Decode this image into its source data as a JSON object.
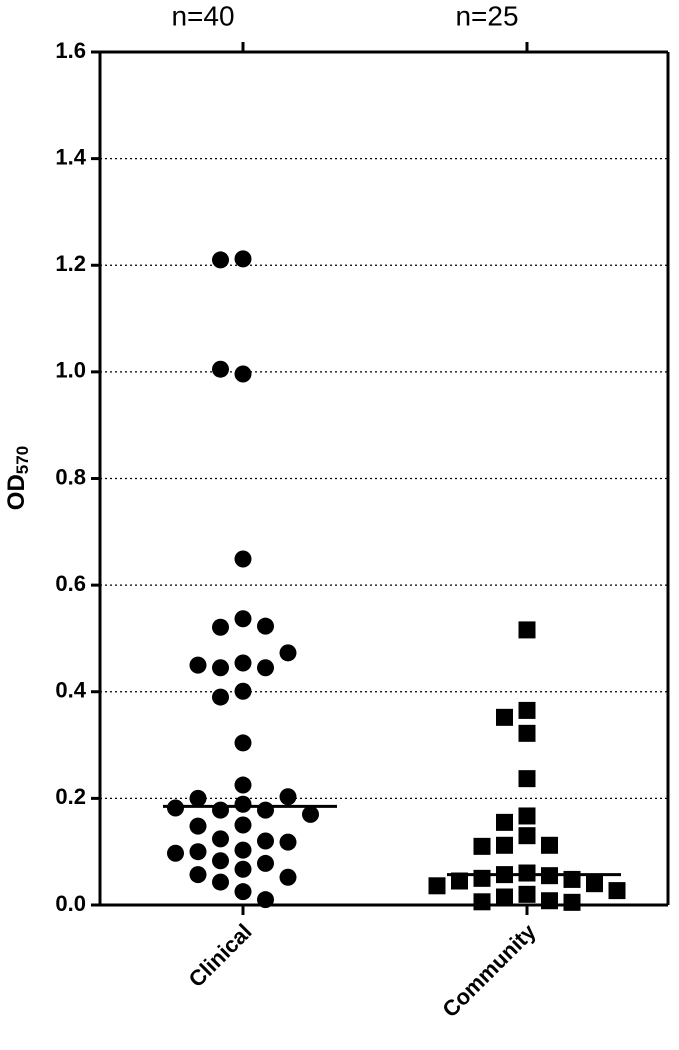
{
  "chart_data": {
    "type": "strip",
    "y_label": "OD",
    "y_label_sub": "570",
    "categories": [
      "Clinical",
      "Community"
    ],
    "annotations": [
      "n=40",
      "n=25"
    ],
    "ylim": [
      0,
      1.6
    ],
    "yticks": [
      {
        "value": 0,
        "label": "0.0"
      },
      0.2,
      0.4,
      0.6,
      0.8,
      {
        "value": 1,
        "label": "1.0"
      },
      1.2,
      1.4,
      1.6
    ],
    "grid": true,
    "series": [
      {
        "color": "#000000",
        "marker": "circle",
        "median": 0.185,
        "values": [
          1.212,
          1.21,
          0.996,
          1.005,
          0.649,
          0.537,
          0.521,
          0.523,
          0.454,
          0.445,
          0.445,
          0.45,
          0.473,
          0.401,
          0.39,
          0.304,
          0.225,
          0.189,
          0.178,
          0.178,
          0.2,
          0.203,
          0.182,
          0.17,
          0.15,
          0.148,
          0.124,
          0.12,
          0.118,
          0.103,
          0.1,
          0.097,
          0.083,
          0.078,
          0.067,
          0.057,
          0.052,
          0.043,
          0.025,
          0.01
        ]
      },
      {
        "color": "#000000",
        "marker": "square",
        "median": 0.057,
        "values": [
          0.516,
          0.365,
          0.352,
          0.322,
          0.237,
          0.167,
          0.155,
          0.13,
          0.112,
          0.112,
          0.11,
          0.06,
          0.057,
          0.055,
          0.05,
          0.048,
          0.045,
          0.04,
          0.036,
          0.027,
          0.02,
          0.015,
          0.008,
          0.006,
          0.005
        ]
      }
    ]
  }
}
